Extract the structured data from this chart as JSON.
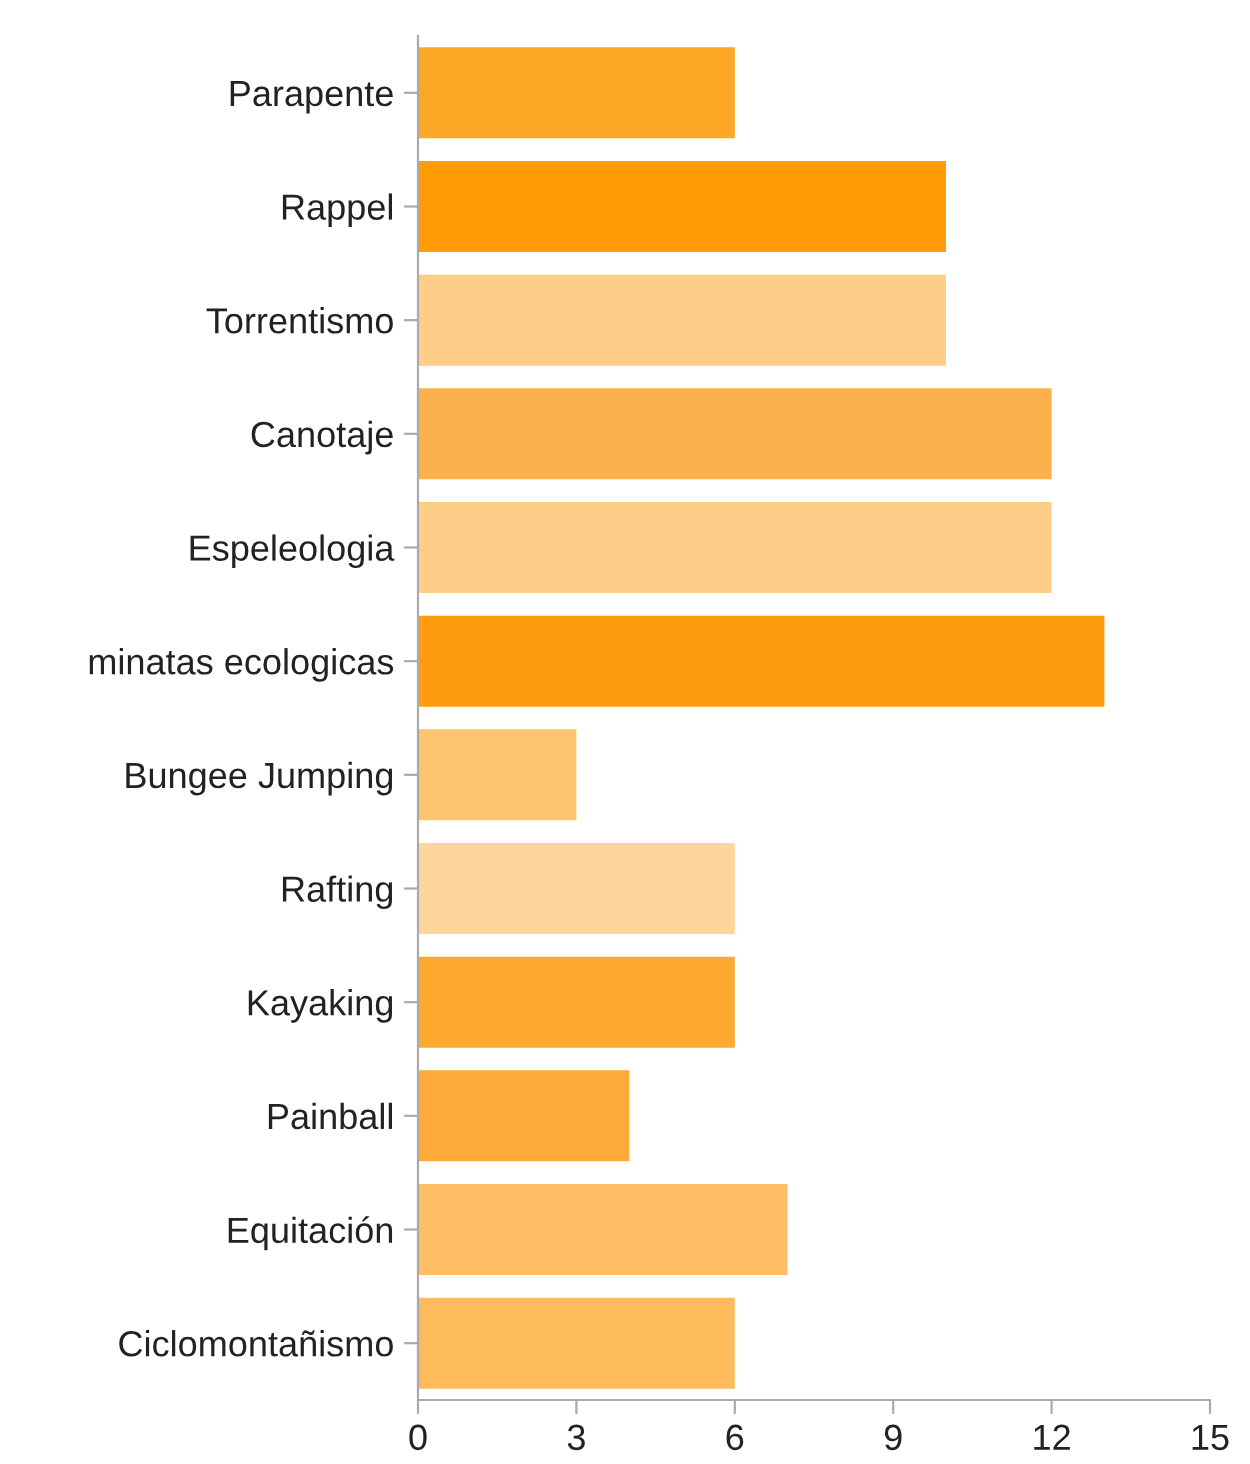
{
  "chart_data": {
    "type": "bar",
    "orientation": "horizontal",
    "categories": [
      "Parapente",
      "Rappel",
      "Torrentismo",
      "Canotaje",
      "Espeleologia",
      "minatas ecologicas",
      "Bungee Jumping",
      "Rafting",
      "Kayaking",
      "Painball",
      "Equitación",
      "Ciclomontañismo"
    ],
    "values": [
      6,
      10,
      10,
      12,
      12,
      13,
      3,
      6,
      6,
      4,
      7,
      6
    ],
    "colors": [
      "#fca725",
      "#ff9c06",
      "#fecd88",
      "#fdb14c",
      "#fecd88",
      "#ff9c0e",
      "#fec46e",
      "#fed69b",
      "#fda82f",
      "#fdaa38",
      "#febf66",
      "#febb5c"
    ],
    "xlim": [
      0,
      15
    ],
    "xticks": [
      0,
      3,
      6,
      9,
      12,
      15
    ],
    "grid": false,
    "legend": false
  }
}
